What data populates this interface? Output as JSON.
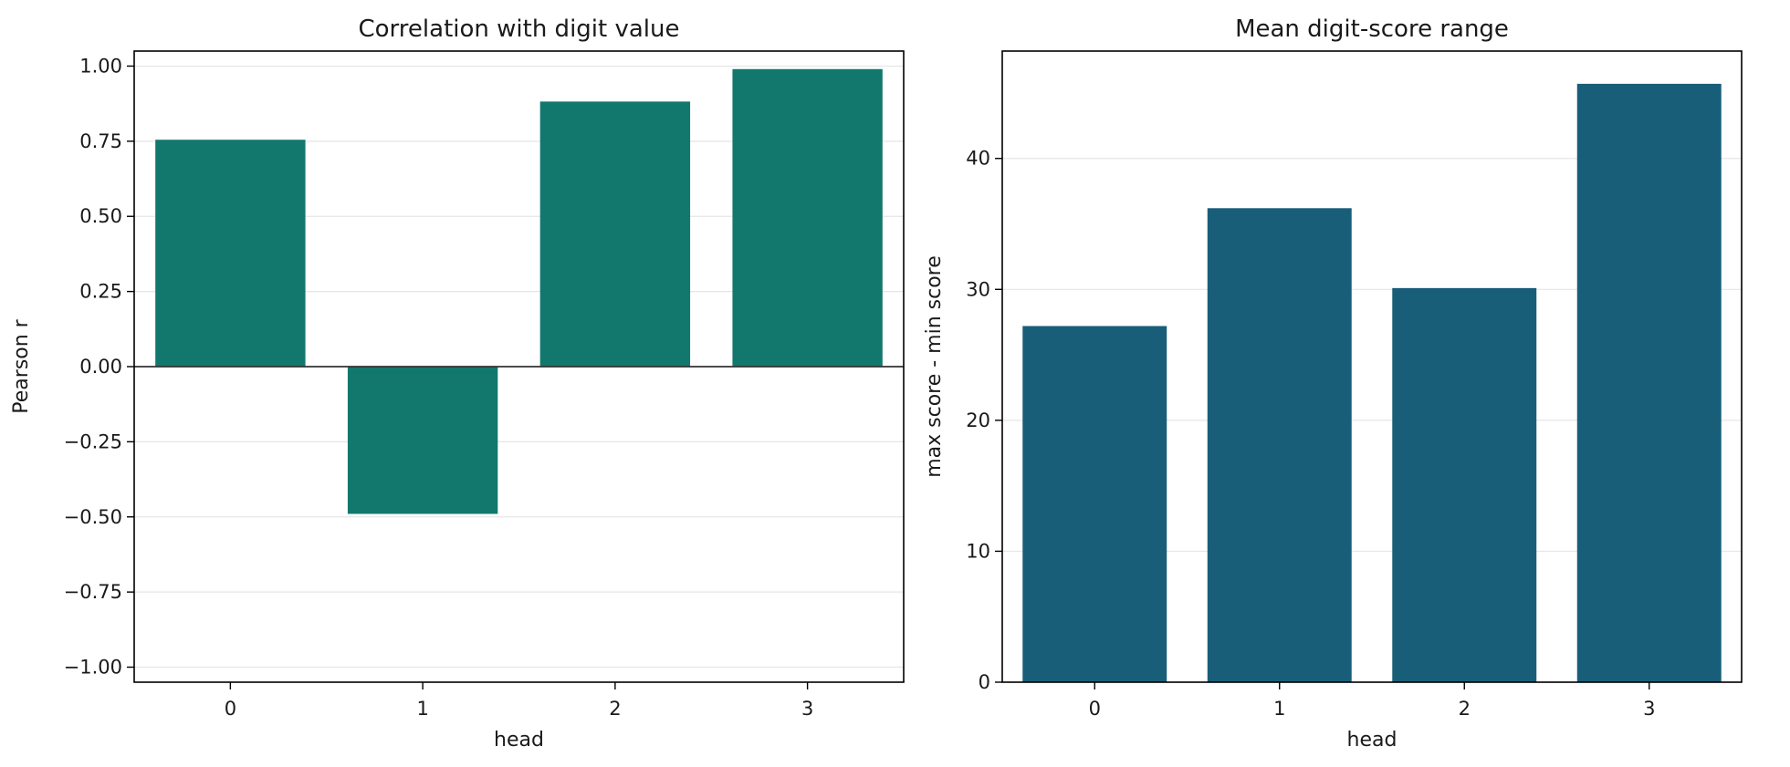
{
  "chart_data": [
    {
      "type": "bar",
      "title": "Correlation with digit value",
      "xlabel": "head",
      "ylabel": "Pearson r",
      "categories": [
        "0",
        "1",
        "2",
        "3"
      ],
      "values": [
        0.755,
        -0.49,
        0.882,
        0.99
      ],
      "ylim": [
        -1.05,
        1.05
      ],
      "yticks": [
        -1.0,
        -0.75,
        -0.5,
        -0.25,
        0.0,
        0.25,
        0.5,
        0.75,
        1.0
      ],
      "ytick_labels": [
        "−1.00",
        "−0.75",
        "−0.50",
        "−0.25",
        "0.00",
        "0.25",
        "0.50",
        "0.75",
        "1.00"
      ],
      "grid": "horizontal",
      "zero_line": true,
      "color": "#12786e"
    },
    {
      "type": "bar",
      "title": "Mean digit-score range",
      "xlabel": "head",
      "ylabel": "max score - min score",
      "categories": [
        "0",
        "1",
        "2",
        "3"
      ],
      "values": [
        27.2,
        36.2,
        30.1,
        45.7
      ],
      "ylim": [
        0,
        48.2
      ],
      "yticks": [
        0,
        10,
        20,
        30,
        40
      ],
      "ytick_labels": [
        "0",
        "10",
        "20",
        "30",
        "40"
      ],
      "grid": "horizontal",
      "zero_line": false,
      "color": "#185e78"
    }
  ]
}
